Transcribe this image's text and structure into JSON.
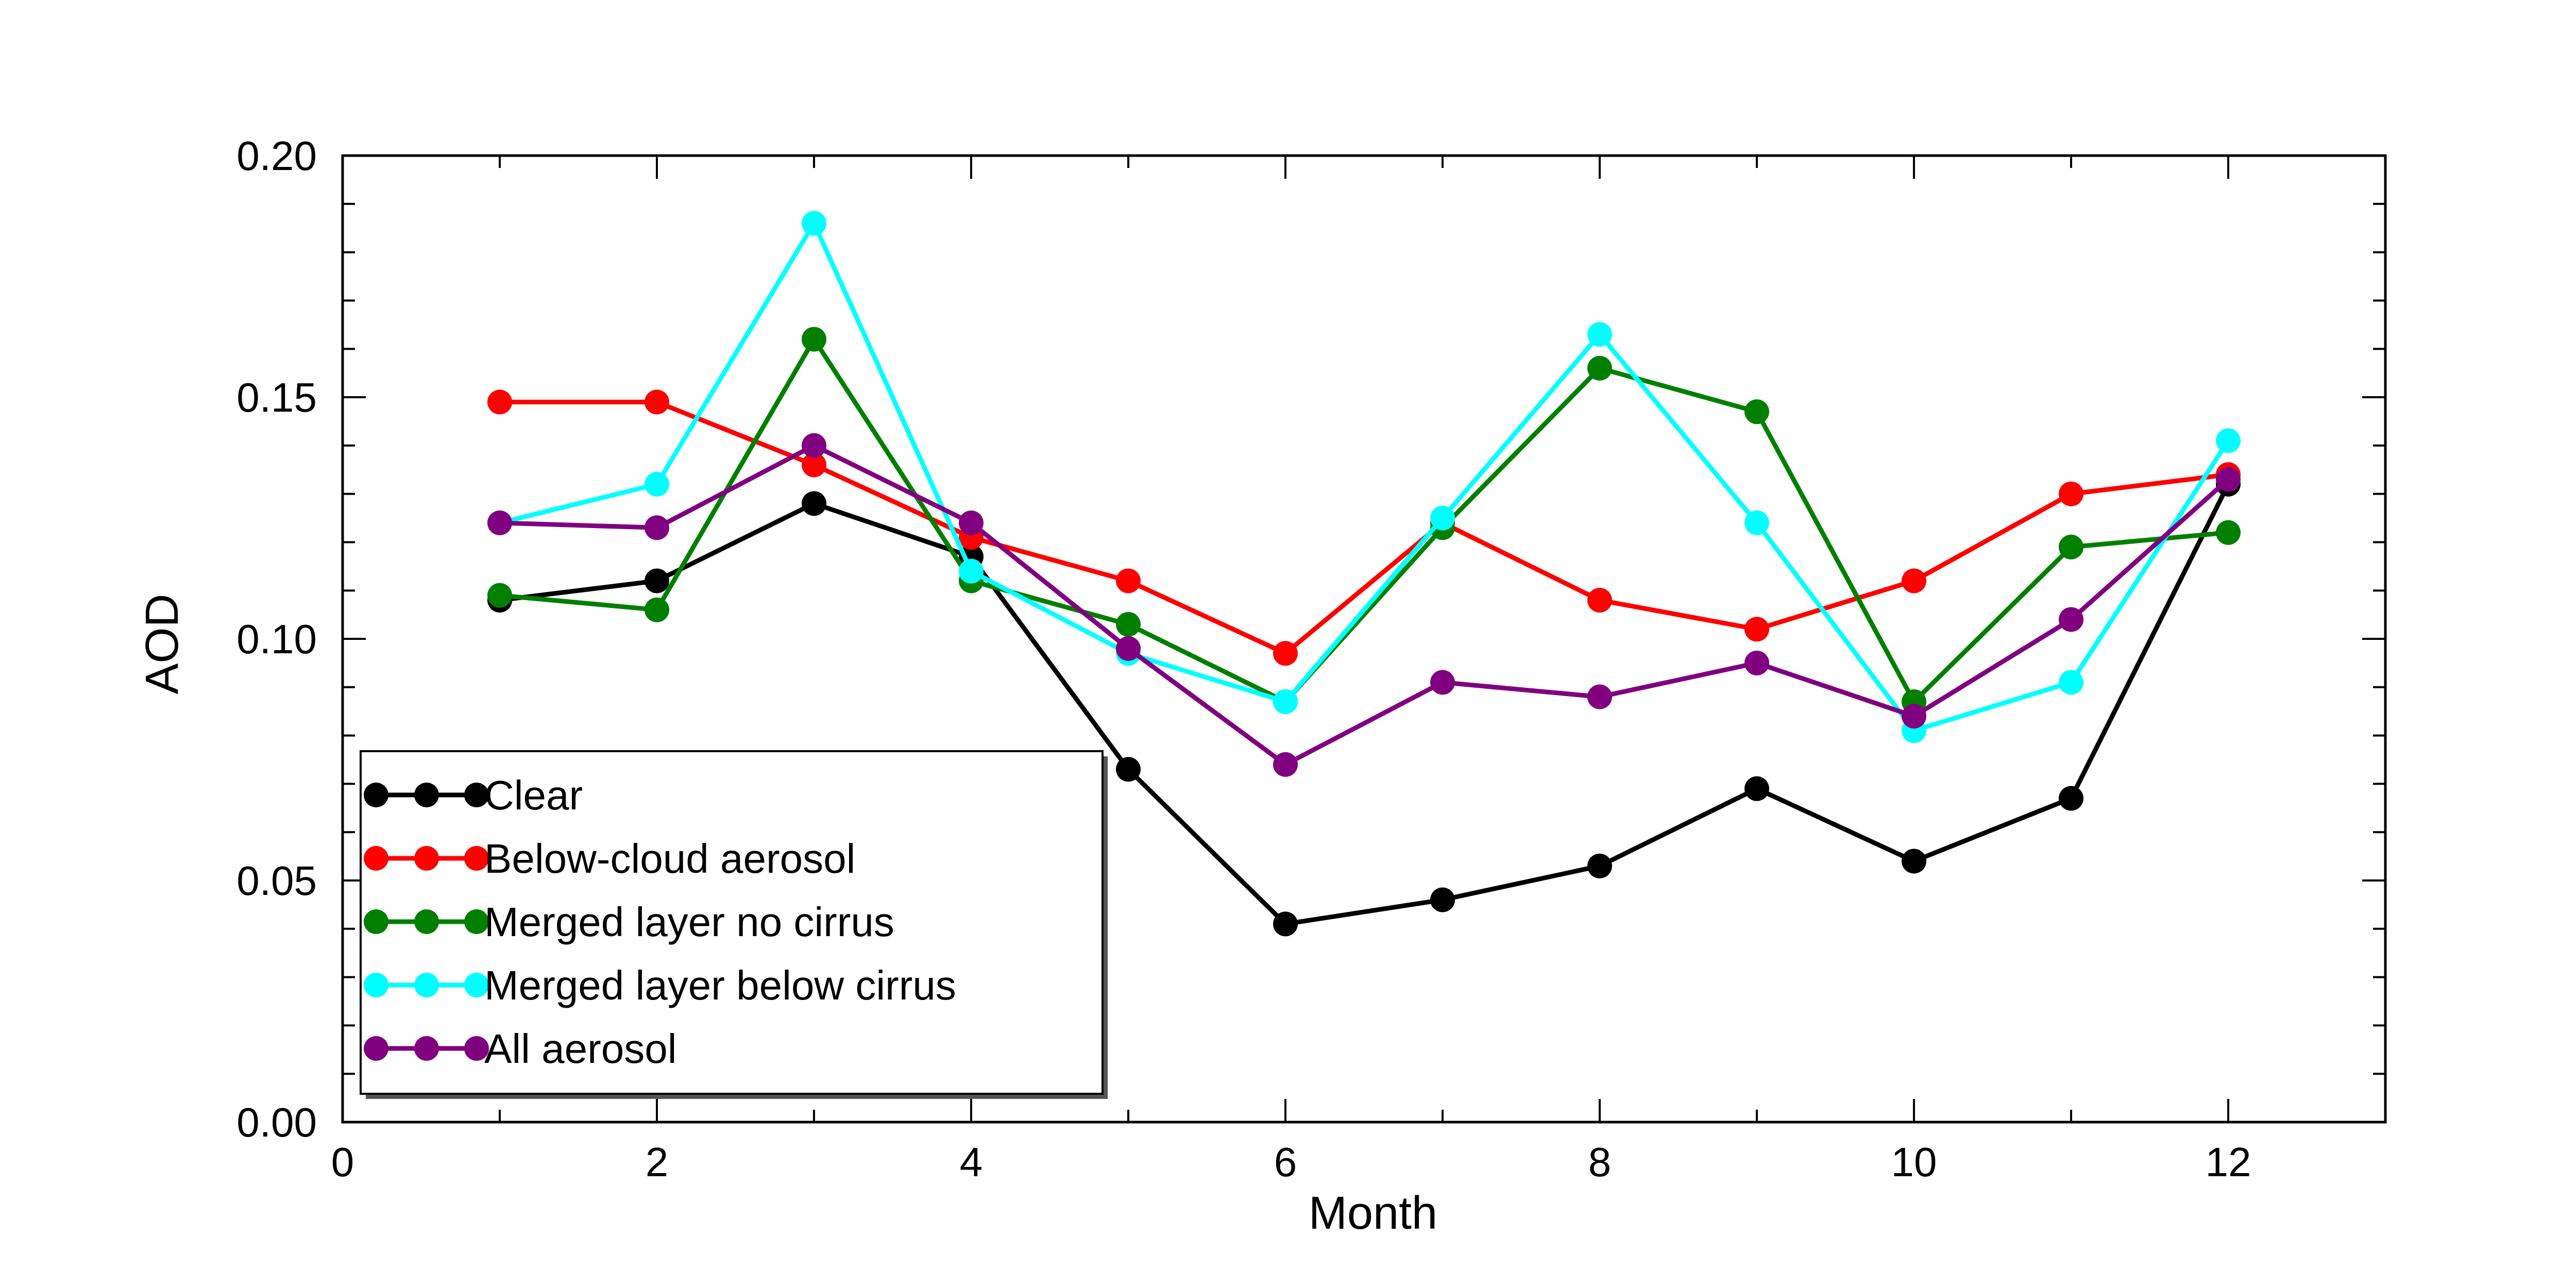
{
  "chart_data": {
    "type": "line",
    "title": "",
    "xlabel": "Month",
    "ylabel": "AOD",
    "xlim": [
      0,
      13
    ],
    "ylim": [
      0.0,
      0.2
    ],
    "x_ticks": [
      0,
      2,
      4,
      6,
      8,
      10,
      12
    ],
    "x_tick_labels": [
      "0",
      "2",
      "4",
      "6",
      "8",
      "10",
      "12"
    ],
    "y_ticks": [
      0.0,
      0.05,
      0.1,
      0.15,
      0.2
    ],
    "y_tick_labels": [
      "0.00",
      "0.05",
      "0.10",
      "0.15",
      "0.20"
    ],
    "grid": false,
    "legend_position": "bottom-left",
    "x": [
      1,
      2,
      3,
      4,
      5,
      6,
      7,
      8,
      9,
      10,
      11,
      12
    ],
    "series": [
      {
        "name": "Clear",
        "color": "#000000",
        "values": [
          0.108,
          0.112,
          0.128,
          0.117,
          0.073,
          0.041,
          0.046,
          0.053,
          0.069,
          0.054,
          0.067,
          0.132
        ]
      },
      {
        "name": "Below-cloud aerosol",
        "color": "#ff0000",
        "values": [
          0.149,
          0.149,
          0.136,
          0.121,
          0.112,
          0.097,
          0.124,
          0.108,
          0.102,
          0.112,
          0.13,
          0.134
        ]
      },
      {
        "name": "Merged layer no cirrus",
        "color": "#007f00",
        "values": [
          0.109,
          0.106,
          0.162,
          0.112,
          0.103,
          0.087,
          0.123,
          0.156,
          0.147,
          0.087,
          0.119,
          0.122
        ]
      },
      {
        "name": "Merged layer below cirrus",
        "color": "#00ffff",
        "values": [
          0.124,
          0.132,
          0.186,
          0.114,
          0.097,
          0.087,
          0.125,
          0.163,
          0.124,
          0.081,
          0.091,
          0.141
        ]
      },
      {
        "name": "All aerosol",
        "color": "#800080",
        "values": [
          0.124,
          0.123,
          0.14,
          0.124,
          0.098,
          0.074,
          0.091,
          0.088,
          0.095,
          0.084,
          0.104,
          0.133
        ]
      }
    ]
  }
}
